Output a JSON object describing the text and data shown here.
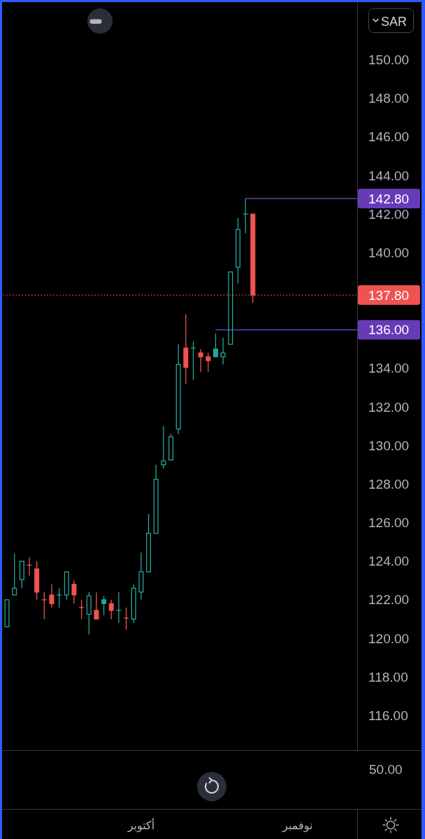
{
  "chart_data": {
    "type": "candlestick",
    "ylabel": "SAR",
    "categories": [
      null,
      null,
      null,
      null,
      null,
      null,
      null,
      null,
      null,
      null,
      null,
      null,
      null,
      null,
      null,
      null,
      null,
      null,
      "أكتوبر",
      null,
      null,
      null,
      null,
      null,
      null,
      null,
      null,
      null,
      null,
      null,
      null,
      null,
      null,
      null,
      null,
      null,
      null,
      null,
      null,
      "نوفمبر",
      null,
      null,
      null,
      null,
      null,
      null,
      null,
      null
    ],
    "ohlc": [
      [
        120.6,
        122.0,
        120.6,
        122.0
      ],
      [
        122.25,
        124.4,
        122.25,
        122.6
      ],
      [
        123.05,
        124.0,
        122.6,
        124.0
      ],
      [
        123.8,
        124.2,
        123.25,
        123.8
      ],
      [
        123.6,
        124.0,
        122.0,
        122.4
      ],
      [
        122.0,
        122.4,
        121.0,
        122.0
      ],
      [
        122.25,
        122.8,
        121.6,
        121.8
      ],
      [
        122.25,
        122.6,
        121.6,
        122.25
      ],
      [
        122.25,
        123.45,
        122.0,
        123.45
      ],
      [
        122.8,
        123.0,
        121.8,
        122.25
      ],
      [
        121.6,
        122.0,
        121.0,
        121.6
      ],
      [
        121.25,
        122.4,
        120.2,
        122.2
      ],
      [
        121.45,
        122.4,
        121.0,
        121.0
      ],
      [
        122.0,
        122.2,
        121.2,
        121.8
      ],
      [
        121.8,
        122.0,
        121.0,
        121.45
      ],
      [
        121.45,
        122.4,
        120.8,
        121.45
      ],
      [
        121.05,
        121.6,
        120.45,
        121.05
      ],
      [
        121.0,
        122.8,
        120.8,
        122.6
      ],
      [
        122.4,
        124.45,
        122.0,
        123.45
      ],
      [
        123.45,
        126.45,
        123.45,
        125.45
      ],
      [
        125.45,
        129.0,
        125.45,
        128.25
      ],
      [
        129.0,
        131.0,
        128.8,
        129.2
      ],
      [
        129.25,
        130.6,
        129.25,
        130.45
      ],
      [
        130.85,
        135.25,
        130.6,
        134.2
      ],
      [
        135.05,
        136.8,
        133.2,
        134.05
      ],
      [
        135.05,
        135.4,
        133.4,
        135.05
      ],
      [
        134.8,
        135.0,
        133.8,
        134.6
      ],
      [
        134.6,
        134.8,
        133.8,
        134.4
      ],
      [
        135.0,
        135.8,
        134.6,
        134.6
      ],
      [
        134.6,
        135.6,
        134.2,
        134.8
      ],
      [
        135.25,
        139.0,
        135.25,
        139.0
      ],
      [
        139.25,
        141.8,
        138.4,
        141.2
      ],
      [
        142.0,
        142.8,
        141.0,
        142.0
      ],
      [
        142.0,
        142.0,
        137.4,
        137.8
      ],
      null,
      null,
      null,
      null,
      null,
      null,
      null,
      null,
      null,
      null,
      null,
      null,
      null,
      null
    ],
    "colors": [
      "#26a69a",
      "#26a69a",
      "#26a69a",
      "#ef5350",
      "#ef5350",
      "#ef5350",
      "#ef5350",
      "#26a69a",
      "#26a69a",
      "#ef5350",
      "#ef5350",
      "#26a69a",
      "#ef5350",
      "#26a69a",
      "#ef5350",
      "#26a69a",
      "#ef5350",
      "#26a69a",
      "#26a69a",
      "#26a69a",
      "#26a69a",
      "#26a69a",
      "#26a69a",
      "#26a69a",
      "#ef5350",
      "#26a69a",
      "#ef5350",
      "#ef5350",
      "#26a69a",
      "#26a69a",
      "#26a69a",
      "#26a69a",
      "#26a69a",
      "#ef5350",
      null,
      null,
      null,
      null,
      null,
      null,
      null,
      null,
      null,
      null,
      null,
      null,
      null,
      null
    ],
    "series": [
      {
        "type": "line",
        "color": "#673ab7",
        "values": [
          null,
          null,
          null,
          null,
          null,
          null,
          null,
          null,
          null,
          null,
          null,
          null,
          null,
          null,
          null,
          null,
          null,
          null,
          null,
          null,
          null,
          null,
          null,
          null,
          null,
          null,
          null,
          null,
          null,
          null,
          null,
          null,
          142.8,
          142.8,
          142.8,
          142.8,
          142.8,
          142.8,
          142.8,
          142.8,
          142.8,
          142.8,
          142.8,
          142.8,
          142.8,
          142.8,
          142.8,
          142.8
        ],
        "value_labels": [
          null,
          null,
          null,
          null,
          null,
          null,
          null,
          null,
          null,
          null,
          null,
          null,
          null,
          null,
          null,
          null,
          null,
          null,
          null,
          null,
          null,
          null,
          null,
          null,
          null,
          null,
          null,
          null,
          null,
          null,
          null,
          null,
          null,
          null,
          null,
          null,
          null,
          null,
          null,
          null,
          null,
          null,
          null,
          null,
          null,
          null,
          null,
          "142.80"
        ]
      },
      {
        "type": "line",
        "color": "#673ab7",
        "values": [
          null,
          null,
          null,
          null,
          null,
          null,
          null,
          null,
          null,
          null,
          null,
          null,
          null,
          null,
          null,
          null,
          null,
          null,
          null,
          null,
          null,
          null,
          null,
          null,
          null,
          null,
          null,
          null,
          136,
          136,
          136,
          136,
          136,
          136,
          136,
          136,
          136,
          136,
          136,
          136,
          136,
          136,
          136,
          136,
          136,
          136,
          136,
          136
        ],
        "value_labels": [
          null,
          null,
          null,
          null,
          null,
          null,
          null,
          null,
          null,
          null,
          null,
          null,
          null,
          null,
          null,
          null,
          null,
          null,
          null,
          null,
          null,
          null,
          null,
          null,
          null,
          null,
          null,
          null,
          null,
          null,
          null,
          null,
          null,
          null,
          null,
          null,
          null,
          null,
          null,
          null,
          null,
          null,
          null,
          null,
          null,
          null,
          null,
          "136.00"
        ]
      }
    ],
    "ref_lines": [
      {
        "axis": "y",
        "value": 137.8,
        "label": "137.80",
        "color": "#ef5350",
        "line_style": "dotted"
      }
    ],
    "ylim": [
      114.2,
      153.1
    ],
    "yticks": [
      {
        "value": 116,
        "label": "116.00"
      },
      {
        "value": 118,
        "label": "118.00"
      },
      {
        "value": 120,
        "label": "120.00"
      },
      {
        "value": 122,
        "label": "122.00"
      },
      {
        "value": 124,
        "label": "124.00"
      },
      {
        "value": 126,
        "label": "126.00"
      },
      {
        "value": 128,
        "label": "128.00"
      },
      {
        "value": 130,
        "label": "130.00"
      },
      {
        "value": 132,
        "label": "132.00"
      },
      {
        "value": 134,
        "label": "134.00"
      },
      {
        "value": 140,
        "label": "140.00"
      },
      {
        "value": 142,
        "label": "142.00"
      },
      {
        "value": 144,
        "label": "144.00"
      },
      {
        "value": 146,
        "label": "146.00"
      },
      {
        "value": 148,
        "label": "148.00"
      },
      {
        "value": 150,
        "label": "150.00"
      }
    ],
    "annotations": [
      "50.00"
    ]
  }
}
